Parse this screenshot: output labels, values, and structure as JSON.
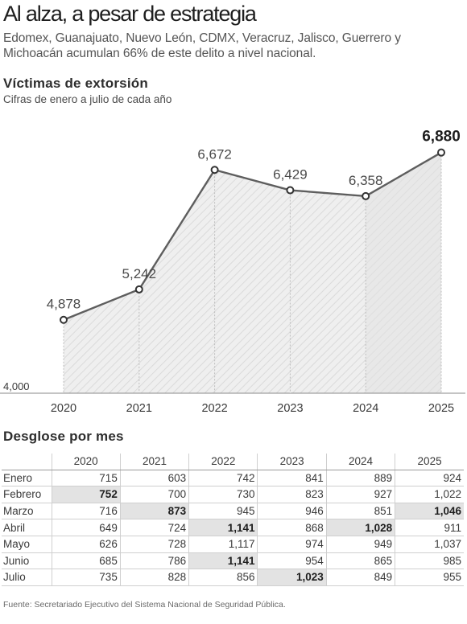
{
  "header": {
    "title": "Al alza, a pesar de estrategia",
    "subtitle": "Edomex, Guanajuato, Nuevo León, CDMX, Veracruz, Jalisco, Guerrero y Michoacán acumulan 66% de este delito a nivel nacional."
  },
  "chart_data": {
    "type": "area",
    "title": "Víctimas de extorsión",
    "subtitle": "Cifras de enero a julio de cada año",
    "x": [
      "2020",
      "2021",
      "2022",
      "2023",
      "2024",
      "2025"
    ],
    "series": [
      {
        "values": [
          4878,
          5242,
          6672,
          6429,
          6358,
          6880
        ]
      }
    ],
    "value_labels": [
      "4,878",
      "5,242",
      "6,672",
      "6,429",
      "6,358",
      "6,880"
    ],
    "ylim": [
      4000,
      7300
    ],
    "y_tick_labels": [
      {
        "value": 4000,
        "label": "4,000"
      }
    ],
    "grid": false,
    "colors": {
      "line": "#5e5e5e",
      "fill": "#eeeeee",
      "hatch": "#d6d6d6"
    }
  },
  "table": {
    "title": "Desglose por mes",
    "columns": [
      "2020",
      "2021",
      "2022",
      "2023",
      "2024",
      "2025"
    ],
    "rows": [
      {
        "month": "Enero",
        "values": [
          "715",
          "603",
          "742",
          "841",
          "889",
          "924"
        ],
        "highlight": []
      },
      {
        "month": "Febrero",
        "values": [
          "752",
          "700",
          "730",
          "823",
          "927",
          "1,022"
        ],
        "highlight": [
          0
        ]
      },
      {
        "month": "Marzo",
        "values": [
          "716",
          "873",
          "945",
          "946",
          "851",
          "1,046"
        ],
        "highlight": [
          1,
          5
        ]
      },
      {
        "month": "Abril",
        "values": [
          "649",
          "724",
          "1,141",
          "868",
          "1,028",
          "911"
        ],
        "highlight": [
          2,
          4
        ]
      },
      {
        "month": "Mayo",
        "values": [
          "626",
          "728",
          "1,117",
          "974",
          "949",
          "1,037"
        ],
        "highlight": []
      },
      {
        "month": "Junio",
        "values": [
          "685",
          "786",
          "1,141",
          "954",
          "865",
          "985"
        ],
        "highlight": [
          2
        ]
      },
      {
        "month": "Julio",
        "values": [
          "735",
          "828",
          "856",
          "1,023",
          "849",
          "955"
        ],
        "highlight": [
          3
        ]
      }
    ]
  },
  "source": "Fuente: Secretariado Ejecutivo del Sistema Nacional de Seguridad Pública."
}
